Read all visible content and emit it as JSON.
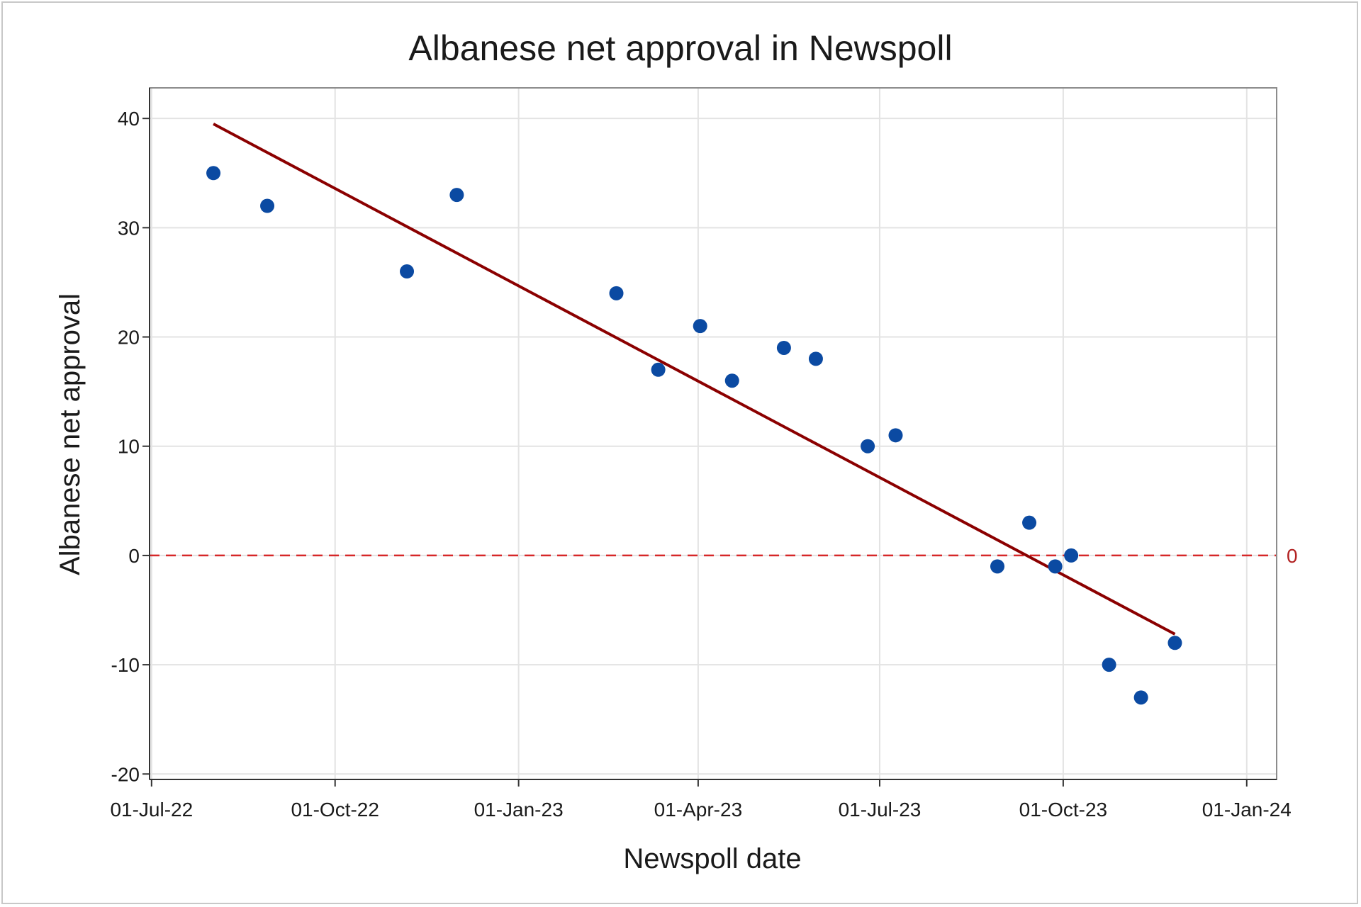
{
  "chart_data": {
    "type": "scatter",
    "title": "Albanese net approval in Newspoll",
    "xlabel": "Newspoll date",
    "ylabel": "Albanese net approval",
    "x_ticks": [
      "01-Jul-22",
      "01-Oct-22",
      "01-Jan-23",
      "01-Apr-23",
      "01-Jul-23",
      "01-Oct-23",
      "01-Jan-24"
    ],
    "y_ticks": [
      40,
      30,
      20,
      10,
      0,
      -10,
      -20
    ],
    "xlim": [
      "2022-06-30",
      "2024-01-16"
    ],
    "ylim": [
      -20.5,
      42.8
    ],
    "grid": true,
    "series": [
      {
        "color": "#0b4aa2",
        "points": [
          {
            "x": "2022-08-01",
            "y": 35
          },
          {
            "x": "2022-08-28",
            "y": 32
          },
          {
            "x": "2022-11-06",
            "y": 26
          },
          {
            "x": "2022-12-01",
            "y": 33
          },
          {
            "x": "2023-02-19",
            "y": 24
          },
          {
            "x": "2023-03-12",
            "y": 17
          },
          {
            "x": "2023-04-02",
            "y": 21
          },
          {
            "x": "2023-04-18",
            "y": 16
          },
          {
            "x": "2023-05-14",
            "y": 19
          },
          {
            "x": "2023-05-30",
            "y": 18
          },
          {
            "x": "2023-06-25",
            "y": 10
          },
          {
            "x": "2023-07-09",
            "y": 11
          },
          {
            "x": "2023-08-29",
            "y": -1
          },
          {
            "x": "2023-09-14",
            "y": 3
          },
          {
            "x": "2023-09-27",
            "y": -1
          },
          {
            "x": "2023-10-05",
            "y": 0
          },
          {
            "x": "2023-10-24",
            "y": -10
          },
          {
            "x": "2023-11-09",
            "y": -13
          },
          {
            "x": "2023-11-26",
            "y": -8
          }
        ]
      }
    ],
    "trend_line": {
      "color": "#8b0000",
      "start": {
        "x": "2022-08-01",
        "y": 39.5
      },
      "end": {
        "x": "2023-11-26",
        "y": -7.2
      }
    },
    "reference_line": {
      "y": 0,
      "label": "0",
      "color": "#d62728",
      "style": "dashed"
    }
  }
}
